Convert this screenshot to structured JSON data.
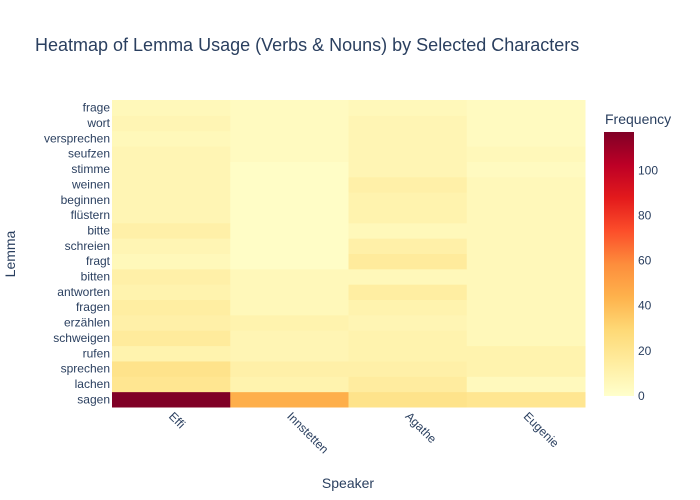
{
  "chart_data": {
    "type": "heatmap",
    "title": "Heatmap of Lemma Usage (Verbs & Nouns) by Selected Characters",
    "xlabel": "Speaker",
    "ylabel": "Lemma",
    "x": [
      "Effi",
      "Innstetten",
      "Agathe",
      "Eugenie"
    ],
    "y": [
      "sagen",
      "lachen",
      "sprechen",
      "rufen",
      "schweigen",
      "erzählen",
      "fragen",
      "antworten",
      "bitten",
      "fragt",
      "schreien",
      "bitte",
      "flüstern",
      "beginnen",
      "weinen",
      "stimme",
      "seufzen",
      "versprechen",
      "wort",
      "frage"
    ],
    "z": [
      [
        117,
        45,
        22,
        20
      ],
      [
        20,
        10,
        15,
        5
      ],
      [
        22,
        12,
        12,
        10
      ],
      [
        10,
        8,
        10,
        10
      ],
      [
        16,
        8,
        10,
        6
      ],
      [
        12,
        10,
        8,
        6
      ],
      [
        14,
        6,
        10,
        6
      ],
      [
        10,
        6,
        14,
        6
      ],
      [
        12,
        6,
        6,
        6
      ],
      [
        6,
        2,
        16,
        6
      ],
      [
        8,
        2,
        12,
        6
      ],
      [
        12,
        2,
        6,
        6
      ],
      [
        8,
        2,
        10,
        6
      ],
      [
        8,
        2,
        10,
        6
      ],
      [
        8,
        2,
        12,
        6
      ],
      [
        8,
        2,
        8,
        4
      ],
      [
        8,
        4,
        8,
        6
      ],
      [
        6,
        4,
        8,
        4
      ],
      [
        8,
        4,
        8,
        4
      ],
      [
        6,
        4,
        6,
        4
      ]
    ],
    "colorscale": "YlOrRd",
    "zmin": 0,
    "zmax": 117,
    "colorbar": {
      "title": "Frequency",
      "ticks": [
        0,
        20,
        40,
        60,
        80,
        100
      ]
    }
  }
}
